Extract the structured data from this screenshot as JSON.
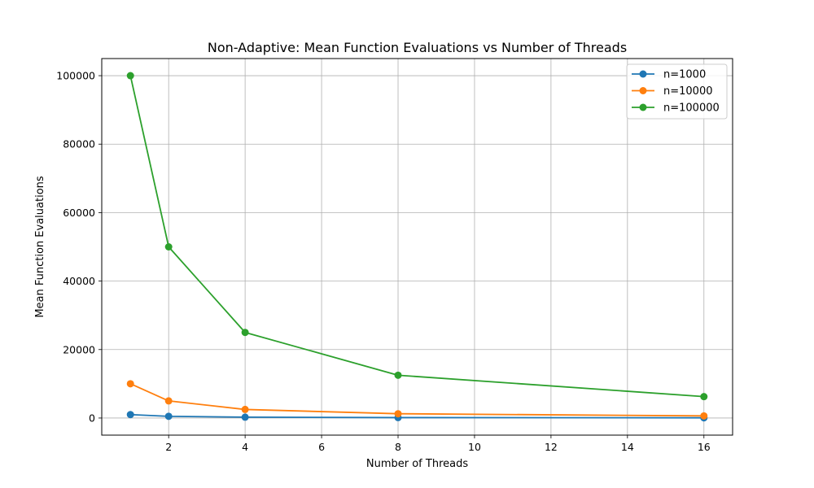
{
  "chart_data": {
    "type": "line",
    "title": "Non-Adaptive: Mean Function Evaluations vs Number of Threads",
    "xlabel": "Number of Threads",
    "ylabel": "Mean Function Evaluations",
    "xlim": [
      0.25,
      16.75
    ],
    "ylim": [
      -5000,
      105000
    ],
    "xticks": [
      2,
      4,
      6,
      8,
      10,
      12,
      14,
      16
    ],
    "yticks": [
      0,
      20000,
      40000,
      60000,
      80000,
      100000
    ],
    "grid": true,
    "legend_position": "top-right",
    "x": [
      1,
      2,
      4,
      8,
      16
    ],
    "series": [
      {
        "name": "n=1000",
        "color": "#1f77b4",
        "values": [
          1000,
          500,
          250,
          125,
          62.5
        ]
      },
      {
        "name": "n=10000",
        "color": "#ff7f0e",
        "values": [
          10000,
          5000,
          2500,
          1250,
          625
        ]
      },
      {
        "name": "n=100000",
        "color": "#2ca02c",
        "values": [
          100000,
          50000,
          25000,
          12500,
          6250
        ]
      }
    ]
  }
}
